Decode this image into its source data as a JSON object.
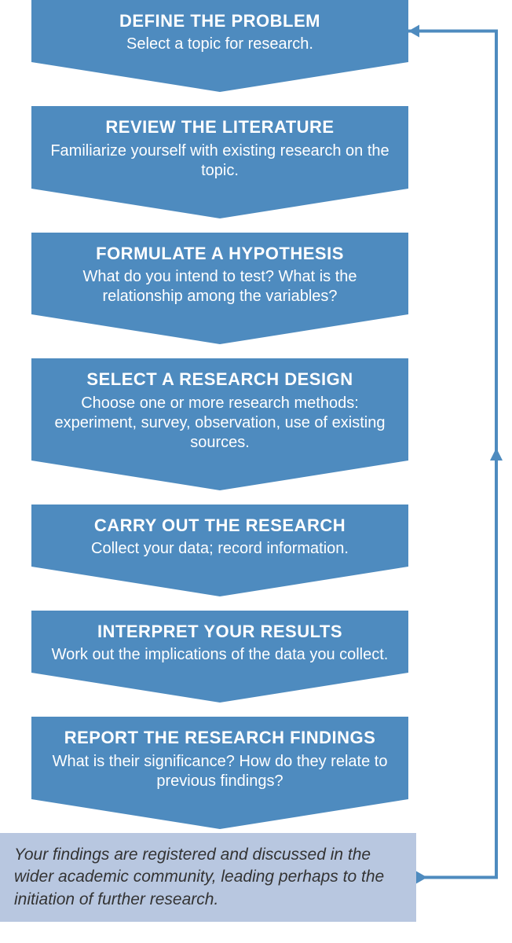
{
  "flowchart": {
    "type": "flowchart",
    "step_bg_color": "#4e8bbf",
    "step_text_color": "#ffffff",
    "title_fontsize": 22,
    "desc_fontsize": 20,
    "chevron_height": 38,
    "step_width": 480,
    "feedback_line_color": "#4e8bbf",
    "feedback_line_width": 4,
    "conclusion_bg_color": "#b8c7e0",
    "conclusion_text_color": "#333333",
    "conclusion_fontsize": 21,
    "background_color": "#ffffff",
    "steps": [
      {
        "title": "DEFINE THE PROBLEM",
        "desc": "Select a topic for research."
      },
      {
        "title": "REVIEW THE LITERATURE",
        "desc": "Familiarize yourself with existing research on the topic."
      },
      {
        "title": "FORMULATE A HYPOTHESIS",
        "desc": "What do you intend to test? What is the relationship among the variables?"
      },
      {
        "title": "SELECT A RESEARCH DESIGN",
        "desc": "Choose one or more research methods: experiment, survey, observation, use of existing sources."
      },
      {
        "title": "CARRY OUT THE RESEARCH",
        "desc": "Collect your data; record information."
      },
      {
        "title": "INTERPRET YOUR RESULTS",
        "desc": "Work out the implications of the data you collect."
      },
      {
        "title": "REPORT THE RESEARCH FINDINGS",
        "desc": "What is their significance? How do they relate to previous findings?"
      }
    ],
    "conclusion": "Your findings are registered and discussed in the wider academic community, leading perhaps to the initiation of further research."
  }
}
